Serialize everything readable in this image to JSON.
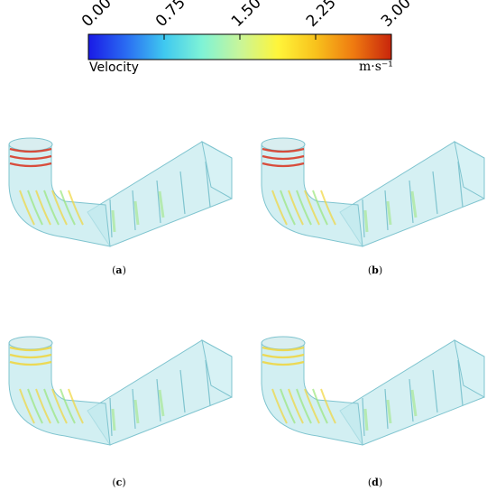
{
  "colorbar": {
    "ticks": [
      "0.00",
      "0.75",
      "1.50",
      "2.25",
      "3.00"
    ],
    "tick_values": [
      0,
      0.75,
      1.5,
      2.25,
      3.0
    ],
    "range": [
      0,
      3.0
    ],
    "label": "Velocity",
    "unit": "m·s⁻¹",
    "colors": [
      "#1a1ae6",
      "#2a6cf2",
      "#3fc8f0",
      "#7ff3d6",
      "#c8f59a",
      "#fff53a",
      "#f8c21c",
      "#ef7a10",
      "#c8250c"
    ]
  },
  "panels": [
    {
      "caption_open": "(",
      "caption_letter": "a",
      "caption_close": ")"
    },
    {
      "caption_open": "(",
      "caption_letter": "b",
      "caption_close": ")"
    },
    {
      "caption_open": "(",
      "caption_letter": "c",
      "caption_close": ")"
    },
    {
      "caption_open": "(",
      "caption_letter": "d",
      "caption_close": ")"
    }
  ],
  "style": {
    "shell_fill": "#bfe8ec",
    "shell_edge": "#7fc4cf",
    "high_band": "#d9301c",
    "mid_band": "#f1d53a",
    "low_band": "#9ae67a"
  }
}
